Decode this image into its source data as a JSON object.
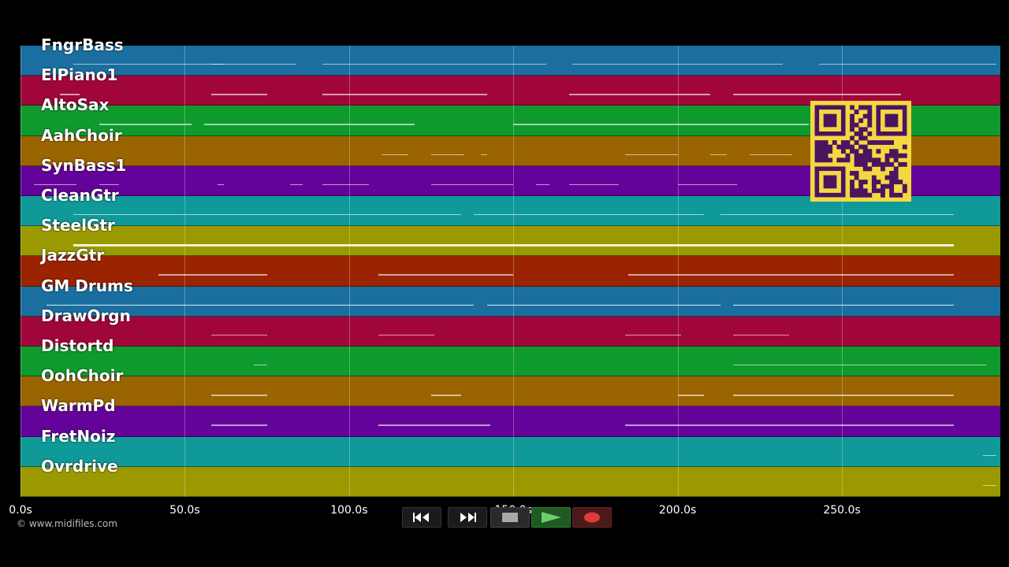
{
  "tracks": [
    {
      "name": "FngrBass",
      "color": "#1a6fa0"
    },
    {
      "name": "ElPiano1",
      "color": "#a0063a"
    },
    {
      "name": "AltoSax",
      "color": "#0f9a2e"
    },
    {
      "name": "AahChoir",
      "color": "#9a6400"
    },
    {
      "name": "SynBass1",
      "color": "#640399"
    },
    {
      "name": "CleanGtr",
      "color": "#0f9a99"
    },
    {
      "name": "SteelGtr",
      "color": "#9a9a00"
    },
    {
      "name": "JazzGtr",
      "color": "#9a2300"
    },
    {
      "name": "GM Drums",
      "color": "#1a6fa0"
    },
    {
      "name": "DrawOrgn",
      "color": "#a0063a"
    },
    {
      "name": "Distortd",
      "color": "#0f9a2e"
    },
    {
      "name": "OohChoir",
      "color": "#9a6400"
    },
    {
      "name": "WarmPd",
      "color": "#640399"
    },
    {
      "name": "FretNoiz",
      "color": "#0f9a99"
    },
    {
      "name": "Ovrdrive",
      "color": "#9a9a00"
    }
  ],
  "timeline": {
    "ticks": [
      "0.0s",
      "50.0s",
      "100.0s",
      "150.0s",
      "200.0s",
      "250.0s"
    ],
    "tick_seconds": [
      0,
      50,
      100,
      150,
      200,
      250
    ],
    "max_seconds": 298
  },
  "copyright": "© www.midifiles.com",
  "transport": {
    "rewind_icon": "rewind-icon",
    "forward_icon": "fast-forward-icon",
    "stop_icon": "stop-icon",
    "play_icon": "play-icon",
    "record_icon": "record-icon"
  },
  "qr_icon": "qr-code-icon"
}
